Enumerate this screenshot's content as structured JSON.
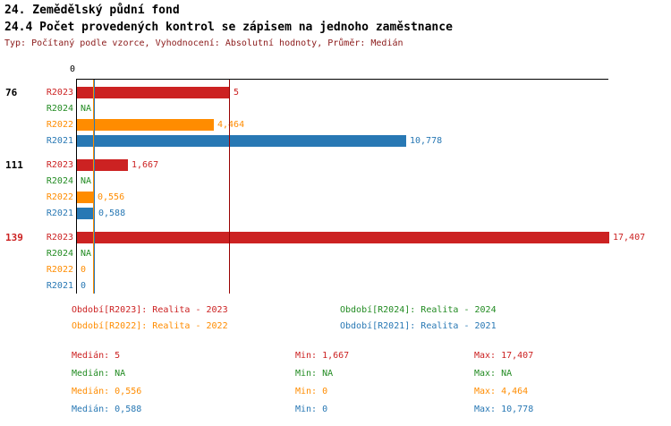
{
  "title": {
    "line1": "24. Zemědělský půdní fond",
    "line2": "24.4 Počet provedených kontrol se zápisem na jednoho zaměstnance",
    "meta": "Typ: Počítaný podle vzorce, Vyhodnocení: Absolutní hodnoty, Průměr: Medián"
  },
  "colors": {
    "R2023": "#cc2222",
    "R2024": "#228b22",
    "R2022": "#ff8c00",
    "R2021": "#2878b4",
    "median_red": "#990000",
    "axis": "#000000",
    "meta_text": "#8b1a1a"
  },
  "chart_data": {
    "type": "bar",
    "orientation": "horizontal",
    "axis_zero_label": "0",
    "xmax": 17.407,
    "series_order": [
      "R2023",
      "R2024",
      "R2022",
      "R2021"
    ],
    "groups": [
      {
        "label": "76",
        "label_color": "#000000",
        "bars": [
          {
            "series": "R2023",
            "value": 5,
            "display": "5"
          },
          {
            "series": "R2024",
            "value": null,
            "display": "NA"
          },
          {
            "series": "R2022",
            "value": 4.464,
            "display": "4,464"
          },
          {
            "series": "R2021",
            "value": 10.778,
            "display": "10,778"
          }
        ]
      },
      {
        "label": "111",
        "label_color": "#000000",
        "bars": [
          {
            "series": "R2023",
            "value": 1.667,
            "display": "1,667"
          },
          {
            "series": "R2024",
            "value": null,
            "display": "NA"
          },
          {
            "series": "R2022",
            "value": 0.556,
            "display": "0,556"
          },
          {
            "series": "R2021",
            "value": 0.588,
            "display": "0,588"
          }
        ]
      },
      {
        "label": "139",
        "label_color": "#cc2222",
        "bars": [
          {
            "series": "R2023",
            "value": 17.407,
            "display": "17,407"
          },
          {
            "series": "R2024",
            "value": null,
            "display": "NA"
          },
          {
            "series": "R2022",
            "value": 0,
            "display": "0"
          },
          {
            "series": "R2021",
            "value": 0,
            "display": "0"
          }
        ]
      }
    ],
    "median_lines": [
      {
        "series": "R2023",
        "value": 5,
        "color": "#990000"
      },
      {
        "series": "R2022",
        "value": 0.556,
        "color": "#ff8c00"
      },
      {
        "series": "R2021",
        "value": 0.588,
        "color": "#2878b4"
      }
    ]
  },
  "legend": [
    {
      "series": "R2023",
      "text": "Období[R2023]: Realita - 2023",
      "col": 0,
      "row": 0
    },
    {
      "series": "R2024",
      "text": "Období[R2024]: Realita - 2024",
      "col": 1,
      "row": 0
    },
    {
      "series": "R2022",
      "text": "Období[R2022]: Realita - 2022",
      "col": 0,
      "row": 1
    },
    {
      "series": "R2021",
      "text": "Období[R2021]: Realita - 2021",
      "col": 1,
      "row": 1
    }
  ],
  "stats": [
    {
      "series": "R2023",
      "median": "Medián: 5",
      "min": "Min: 1,667",
      "max": "Max: 17,407"
    },
    {
      "series": "R2024",
      "median": "Medián: NA",
      "min": "Min: NA",
      "max": "Max: NA"
    },
    {
      "series": "R2022",
      "median": "Medián: 0,556",
      "min": "Min: 0",
      "max": "Max: 4,464"
    },
    {
      "series": "R2021",
      "median": "Medián: 0,588",
      "min": "Min: 0",
      "max": "Max: 10,778"
    }
  ]
}
